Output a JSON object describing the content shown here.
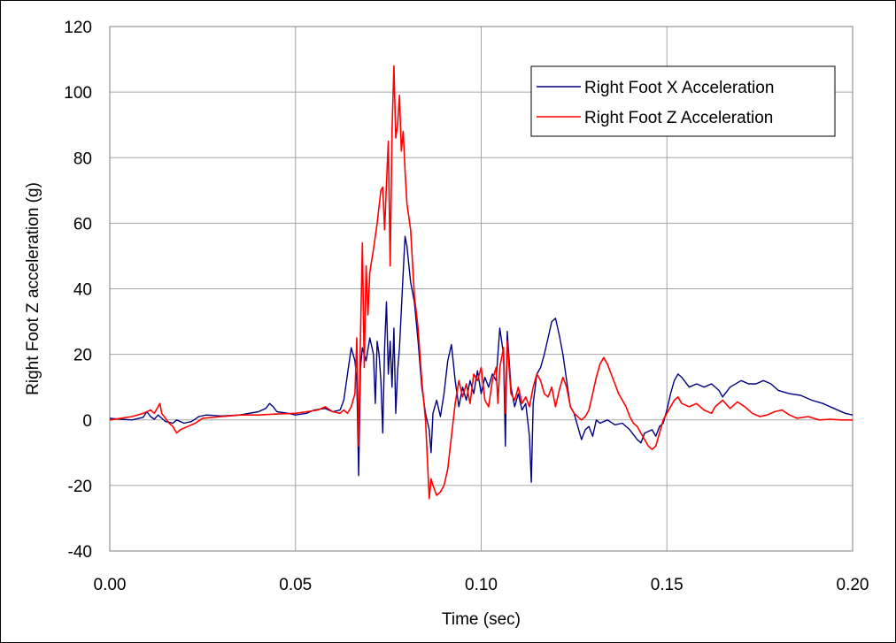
{
  "chart_data": {
    "type": "line",
    "title": "",
    "xlabel": "Time (sec)",
    "ylabel": "Right Foot Z acceleration (g)",
    "xlim": [
      0,
      0.2
    ],
    "ylim": [
      -40,
      120
    ],
    "x_ticks": [
      0,
      0.05,
      0.1,
      0.15,
      0.2
    ],
    "x_tick_labels": [
      "0.00",
      "0.05",
      "0.10",
      "0.15",
      "0.20"
    ],
    "y_ticks": [
      -40,
      -20,
      0,
      20,
      40,
      60,
      80,
      100,
      120
    ],
    "y_tick_labels": [
      "-40",
      "-20",
      "0",
      "20",
      "40",
      "60",
      "80",
      "100",
      "120"
    ],
    "grid": true,
    "legend_position": "top-right",
    "series": [
      {
        "name": "Right Foot X Acceleration",
        "color": "#000080",
        "points": [
          [
            0.0,
            0.5
          ],
          [
            0.003,
            0.2
          ],
          [
            0.006,
            0.0
          ],
          [
            0.009,
            0.8
          ],
          [
            0.01,
            2.5
          ],
          [
            0.011,
            1.0
          ],
          [
            0.012,
            0.2
          ],
          [
            0.013,
            1.5
          ],
          [
            0.014,
            0.5
          ],
          [
            0.015,
            -0.5
          ],
          [
            0.017,
            -1.0
          ],
          [
            0.018,
            0.0
          ],
          [
            0.02,
            -1.0
          ],
          [
            0.022,
            -0.5
          ],
          [
            0.024,
            1.0
          ],
          [
            0.026,
            1.5
          ],
          [
            0.03,
            1.2
          ],
          [
            0.035,
            1.5
          ],
          [
            0.04,
            2.5
          ],
          [
            0.042,
            3.5
          ],
          [
            0.043,
            5.0
          ],
          [
            0.044,
            4.0
          ],
          [
            0.045,
            2.5
          ],
          [
            0.048,
            2.0
          ],
          [
            0.05,
            1.5
          ],
          [
            0.053,
            2.0
          ],
          [
            0.055,
            3.0
          ],
          [
            0.058,
            3.5
          ],
          [
            0.06,
            2.5
          ],
          [
            0.062,
            3.0
          ],
          [
            0.063,
            6.0
          ],
          [
            0.064,
            14.0
          ],
          [
            0.065,
            22.0
          ],
          [
            0.066,
            18.0
          ],
          [
            0.0665,
            12.0
          ],
          [
            0.067,
            -17.0
          ],
          [
            0.0675,
            16.0
          ],
          [
            0.068,
            22.0
          ],
          [
            0.069,
            18.0
          ],
          [
            0.07,
            25.0
          ],
          [
            0.071,
            20.0
          ],
          [
            0.0715,
            5.0
          ],
          [
            0.072,
            24.0
          ],
          [
            0.0725,
            20.0
          ],
          [
            0.073,
            12.0
          ],
          [
            0.0735,
            -4.0
          ],
          [
            0.074,
            22.0
          ],
          [
            0.0745,
            36.0
          ],
          [
            0.075,
            14.0
          ],
          [
            0.0755,
            24.0
          ],
          [
            0.076,
            10.0
          ],
          [
            0.0765,
            28.0
          ],
          [
            0.077,
            2.0
          ],
          [
            0.0775,
            15.0
          ],
          [
            0.078,
            22.0
          ],
          [
            0.079,
            45.0
          ],
          [
            0.0795,
            56.0
          ],
          [
            0.08,
            53.0
          ],
          [
            0.081,
            42.0
          ],
          [
            0.082,
            36.0
          ],
          [
            0.083,
            24.0
          ],
          [
            0.084,
            10.0
          ],
          [
            0.085,
            2.0
          ],
          [
            0.086,
            -3.0
          ],
          [
            0.0865,
            -10.0
          ],
          [
            0.087,
            2.0
          ],
          [
            0.088,
            6.0
          ],
          [
            0.089,
            1.0
          ],
          [
            0.09,
            8.0
          ],
          [
            0.091,
            18.0
          ],
          [
            0.092,
            23.0
          ],
          [
            0.093,
            12.0
          ],
          [
            0.094,
            4.0
          ],
          [
            0.095,
            10.0
          ],
          [
            0.096,
            6.0
          ],
          [
            0.097,
            12.0
          ],
          [
            0.098,
            8.0
          ],
          [
            0.099,
            15.0
          ],
          [
            0.1,
            8.0
          ],
          [
            0.101,
            13.0
          ],
          [
            0.102,
            10.0
          ],
          [
            0.103,
            14.0
          ],
          [
            0.104,
            12.0
          ],
          [
            0.105,
            28.0
          ],
          [
            0.106,
            20.0
          ],
          [
            0.1065,
            -8.0
          ],
          [
            0.107,
            27.0
          ],
          [
            0.108,
            10.0
          ],
          [
            0.109,
            4.0
          ],
          [
            0.11,
            8.0
          ],
          [
            0.111,
            3.0
          ],
          [
            0.112,
            5.0
          ],
          [
            0.113,
            -5.0
          ],
          [
            0.1135,
            -19.0
          ],
          [
            0.114,
            5.0
          ],
          [
            0.115,
            14.0
          ],
          [
            0.116,
            16.0
          ],
          [
            0.117,
            20.0
          ],
          [
            0.118,
            25.0
          ],
          [
            0.119,
            30.0
          ],
          [
            0.12,
            31.0
          ],
          [
            0.121,
            26.0
          ],
          [
            0.122,
            20.0
          ],
          [
            0.123,
            12.0
          ],
          [
            0.124,
            4.0
          ],
          [
            0.125,
            2.0
          ],
          [
            0.126,
            -2.0
          ],
          [
            0.127,
            -6.0
          ],
          [
            0.128,
            -3.0
          ],
          [
            0.129,
            -2.0
          ],
          [
            0.13,
            -5.0
          ],
          [
            0.131,
            0.0
          ],
          [
            0.132,
            -1.0
          ],
          [
            0.134,
            0.0
          ],
          [
            0.136,
            -1.5
          ],
          [
            0.138,
            -1.0
          ],
          [
            0.14,
            -3.0
          ],
          [
            0.142,
            -6.0
          ],
          [
            0.143,
            -7.0
          ],
          [
            0.144,
            -4.0
          ],
          [
            0.146,
            -3.0
          ],
          [
            0.147,
            -5.0
          ],
          [
            0.148,
            -2.0
          ],
          [
            0.149,
            -1.0
          ],
          [
            0.15,
            3.0
          ],
          [
            0.151,
            8.0
          ],
          [
            0.152,
            12.0
          ],
          [
            0.153,
            14.0
          ],
          [
            0.154,
            13.0
          ],
          [
            0.156,
            10.0
          ],
          [
            0.158,
            11.0
          ],
          [
            0.16,
            10.0
          ],
          [
            0.162,
            11.0
          ],
          [
            0.164,
            9.0
          ],
          [
            0.165,
            7.0
          ],
          [
            0.167,
            10.0
          ],
          [
            0.17,
            12.0
          ],
          [
            0.172,
            11.0
          ],
          [
            0.174,
            11.0
          ],
          [
            0.176,
            12.0
          ],
          [
            0.178,
            11.0
          ],
          [
            0.18,
            9.0
          ],
          [
            0.183,
            8.0
          ],
          [
            0.186,
            7.5
          ],
          [
            0.189,
            6.0
          ],
          [
            0.192,
            5.0
          ],
          [
            0.195,
            3.5
          ],
          [
            0.198,
            2.0
          ],
          [
            0.2,
            1.5
          ]
        ]
      },
      {
        "name": "Right Foot Z Acceleration",
        "color": "#ff0000",
        "points": [
          [
            0.0,
            0.0
          ],
          [
            0.003,
            0.5
          ],
          [
            0.006,
            1.0
          ],
          [
            0.009,
            2.0
          ],
          [
            0.011,
            3.0
          ],
          [
            0.012,
            2.0
          ],
          [
            0.013,
            4.0
          ],
          [
            0.0135,
            5.0
          ],
          [
            0.014,
            2.0
          ],
          [
            0.015,
            0.5
          ],
          [
            0.016,
            -1.0
          ],
          [
            0.017,
            -2.0
          ],
          [
            0.018,
            -4.0
          ],
          [
            0.019,
            -3.0
          ],
          [
            0.021,
            -2.0
          ],
          [
            0.023,
            -1.0
          ],
          [
            0.025,
            0.5
          ],
          [
            0.03,
            1.0
          ],
          [
            0.035,
            1.5
          ],
          [
            0.04,
            1.5
          ],
          [
            0.045,
            1.8
          ],
          [
            0.05,
            2.0
          ],
          [
            0.053,
            2.5
          ],
          [
            0.056,
            3.0
          ],
          [
            0.058,
            4.0
          ],
          [
            0.06,
            2.5
          ],
          [
            0.062,
            2.0
          ],
          [
            0.063,
            3.0
          ],
          [
            0.064,
            2.0
          ],
          [
            0.065,
            4.0
          ],
          [
            0.066,
            8.0
          ],
          [
            0.0665,
            25.0
          ],
          [
            0.067,
            -8.0
          ],
          [
            0.0675,
            26.0
          ],
          [
            0.068,
            54.0
          ],
          [
            0.0685,
            16.0
          ],
          [
            0.069,
            47.0
          ],
          [
            0.0695,
            32.0
          ],
          [
            0.07,
            45.0
          ],
          [
            0.071,
            52.0
          ],
          [
            0.072,
            60.0
          ],
          [
            0.073,
            70.0
          ],
          [
            0.0735,
            71.0
          ],
          [
            0.074,
            58.0
          ],
          [
            0.0745,
            72.0
          ],
          [
            0.075,
            85.0
          ],
          [
            0.0755,
            47.0
          ],
          [
            0.076,
            88.0
          ],
          [
            0.0765,
            108.0
          ],
          [
            0.077,
            86.0
          ],
          [
            0.0775,
            90.0
          ],
          [
            0.078,
            99.0
          ],
          [
            0.0785,
            82.0
          ],
          [
            0.079,
            88.0
          ],
          [
            0.0795,
            76.0
          ],
          [
            0.08,
            66.0
          ],
          [
            0.081,
            58.0
          ],
          [
            0.082,
            38.0
          ],
          [
            0.083,
            28.0
          ],
          [
            0.084,
            12.0
          ],
          [
            0.085,
            0.0
          ],
          [
            0.0855,
            -12.0
          ],
          [
            0.086,
            -24.0
          ],
          [
            0.0865,
            -18.0
          ],
          [
            0.087,
            -20.0
          ],
          [
            0.088,
            -23.0
          ],
          [
            0.089,
            -22.0
          ],
          [
            0.09,
            -20.0
          ],
          [
            0.091,
            -15.0
          ],
          [
            0.092,
            -5.0
          ],
          [
            0.093,
            5.0
          ],
          [
            0.094,
            12.0
          ],
          [
            0.095,
            7.0
          ],
          [
            0.096,
            11.0
          ],
          [
            0.097,
            5.0
          ],
          [
            0.098,
            14.0
          ],
          [
            0.099,
            12.0
          ],
          [
            0.1,
            16.0
          ],
          [
            0.101,
            6.0
          ],
          [
            0.102,
            4.0
          ],
          [
            0.103,
            12.0
          ],
          [
            0.104,
            16.0
          ],
          [
            0.1045,
            5.0
          ],
          [
            0.105,
            16.0
          ],
          [
            0.106,
            22.0
          ],
          [
            0.1065,
            2.0
          ],
          [
            0.107,
            24.0
          ],
          [
            0.108,
            8.0
          ],
          [
            0.109,
            6.0
          ],
          [
            0.11,
            10.0
          ],
          [
            0.111,
            5.0
          ],
          [
            0.112,
            7.0
          ],
          [
            0.113,
            4.0
          ],
          [
            0.114,
            10.0
          ],
          [
            0.115,
            14.0
          ],
          [
            0.116,
            12.0
          ],
          [
            0.117,
            8.0
          ],
          [
            0.118,
            7.0
          ],
          [
            0.119,
            10.0
          ],
          [
            0.12,
            4.0
          ],
          [
            0.121,
            9.0
          ],
          [
            0.122,
            13.0
          ],
          [
            0.123,
            10.0
          ],
          [
            0.124,
            4.0
          ],
          [
            0.125,
            2.0
          ],
          [
            0.127,
            0.0
          ],
          [
            0.128,
            1.0
          ],
          [
            0.129,
            3.0
          ],
          [
            0.13,
            8.0
          ],
          [
            0.131,
            13.0
          ],
          [
            0.132,
            17.0
          ],
          [
            0.133,
            19.0
          ],
          [
            0.134,
            17.0
          ],
          [
            0.135,
            14.0
          ],
          [
            0.136,
            11.0
          ],
          [
            0.137,
            8.0
          ],
          [
            0.138,
            6.0
          ],
          [
            0.139,
            4.0
          ],
          [
            0.14,
            1.0
          ],
          [
            0.141,
            -1.0
          ],
          [
            0.142,
            -2.0
          ],
          [
            0.143,
            -4.0
          ],
          [
            0.144,
            -6.0
          ],
          [
            0.145,
            -8.0
          ],
          [
            0.146,
            -9.0
          ],
          [
            0.147,
            -8.0
          ],
          [
            0.148,
            -4.0
          ],
          [
            0.149,
            0.0
          ],
          [
            0.15,
            2.0
          ],
          [
            0.151,
            4.0
          ],
          [
            0.152,
            6.0
          ],
          [
            0.153,
            7.0
          ],
          [
            0.154,
            5.0
          ],
          [
            0.156,
            4.0
          ],
          [
            0.158,
            5.0
          ],
          [
            0.16,
            3.0
          ],
          [
            0.162,
            2.0
          ],
          [
            0.163,
            4.0
          ],
          [
            0.165,
            6.0
          ],
          [
            0.167,
            3.5
          ],
          [
            0.169,
            5.5
          ],
          [
            0.171,
            4.0
          ],
          [
            0.173,
            2.0
          ],
          [
            0.175,
            1.0
          ],
          [
            0.177,
            1.5
          ],
          [
            0.179,
            2.5
          ],
          [
            0.181,
            3.0
          ],
          [
            0.183,
            1.5
          ],
          [
            0.185,
            0.5
          ],
          [
            0.188,
            1.0
          ],
          [
            0.191,
            0.0
          ],
          [
            0.194,
            0.2
          ],
          [
            0.197,
            0.0
          ],
          [
            0.2,
            0.0
          ]
        ]
      }
    ]
  }
}
